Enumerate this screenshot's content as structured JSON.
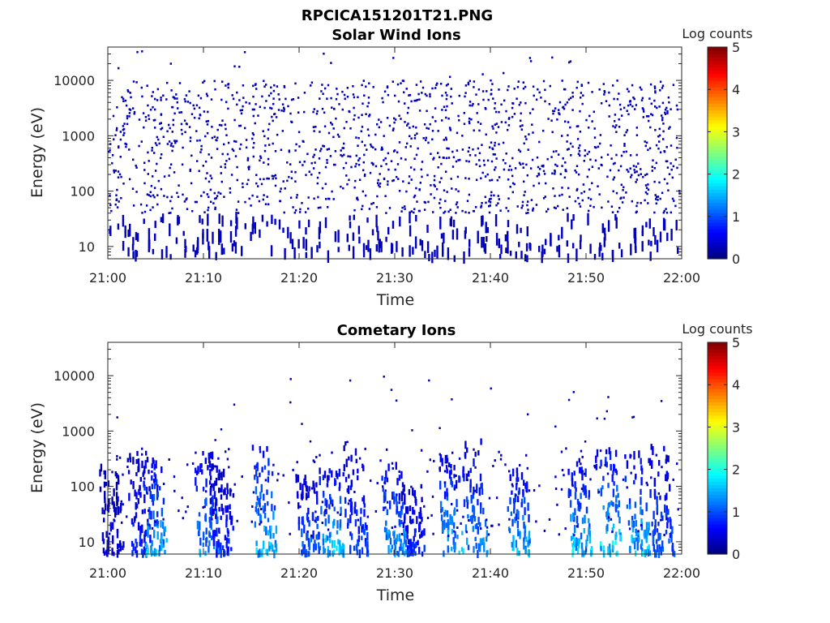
{
  "figure": {
    "file_title": "RPCICA151201T21.PNG"
  },
  "colorbar": {
    "label": "Log counts",
    "ticks": [
      "0",
      "1",
      "2",
      "3",
      "4",
      "5"
    ],
    "range": [
      0,
      5
    ],
    "colormap": "jet"
  },
  "chart_data": [
    {
      "type": "heatmap",
      "title": "Solar Wind Ions",
      "xlabel": "Time",
      "ylabel": "Energy (eV)",
      "x_ticks": [
        "21:00",
        "21:10",
        "21:20",
        "21:30",
        "21:40",
        "21:50",
        "22:00"
      ],
      "x_range_minutes": [
        0,
        60
      ],
      "y_ticks": [
        "10",
        "100",
        "1000",
        "10000"
      ],
      "y_scale": "log",
      "y_range": [
        6,
        40000
      ],
      "z_label": "Log counts",
      "z_range": [
        0,
        5
      ],
      "typical_z": 0.3,
      "description": "Sparse isolated single counts (dark blue) scattered across all times; density greatest between about 50 eV and 10000 eV with vertical streaks below 30 eV"
    },
    {
      "type": "heatmap",
      "title": "Cometary Ions",
      "xlabel": "Time",
      "ylabel": "Energy (eV)",
      "x_ticks": [
        "21:00",
        "21:10",
        "21:20",
        "21:30",
        "21:40",
        "21:50",
        "22:00"
      ],
      "x_range_minutes": [
        0,
        60
      ],
      "y_ticks": [
        "10",
        "100",
        "1000",
        "10000"
      ],
      "y_scale": "log",
      "y_range": [
        6,
        40000
      ],
      "z_label": "Log counts",
      "z_range": [
        0,
        5
      ],
      "burst_times_minutes": [
        0.5,
        3.5,
        5,
        10.5,
        12,
        16.5,
        21,
        23.5,
        26,
        30,
        32,
        36,
        38.5,
        43,
        49.5,
        52.5,
        55.5,
        58
      ],
      "burst_peak_log_counts": [
        0.6,
        1.0,
        1.8,
        1.6,
        1.0,
        1.9,
        1.4,
        1.9,
        1.2,
        1.8,
        1.0,
        1.8,
        1.6,
        1.8,
        1.9,
        2.1,
        1.9,
        1.3
      ],
      "burst_max_energy_eV": [
        250,
        400,
        350,
        450,
        300,
        550,
        150,
        200,
        650,
        250,
        120,
        350,
        650,
        200,
        300,
        450,
        400,
        550
      ]
    }
  ]
}
